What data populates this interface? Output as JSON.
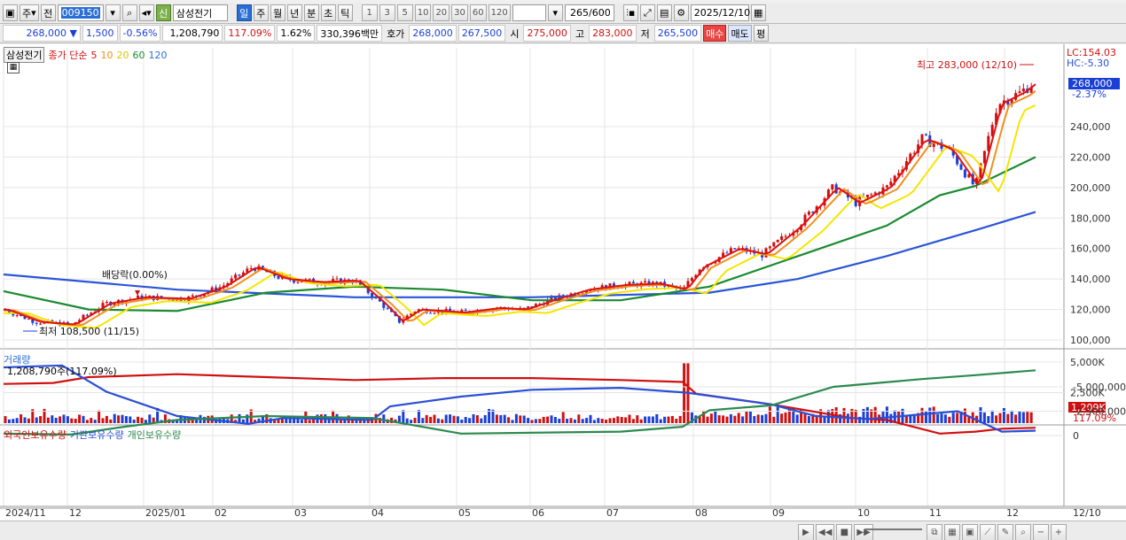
{
  "toolbar": {
    "period_main": "주",
    "prev": "전",
    "stock_code": "009150",
    "market_badge": "신",
    "stock_name": "삼성전기",
    "periods": [
      "일",
      "주",
      "월",
      "년",
      "분",
      "초",
      "틱"
    ],
    "active_period": "일",
    "minute_options": [
      "1",
      "3",
      "5",
      "10",
      "20",
      "30",
      "60",
      "120"
    ],
    "count_display": "265/600",
    "date": "2025/12/10"
  },
  "quote": {
    "price": "268,000",
    "change_arrow": "▼",
    "change": "1,500",
    "change_pct": "-0.56%",
    "volume": "1,208,790",
    "volume_ratio": "117.09%",
    "turnover_ratio": "1.62%",
    "trade_value": "330,396백만",
    "bid_label": "호가",
    "bid1": "268,000",
    "bid2": "267,500",
    "open_label": "시",
    "open": "275,000",
    "high_label": "고",
    "high": "283,000",
    "low_label": "저",
    "low": "265,500",
    "buy_label": "매수",
    "sell_label": "매도",
    "eval_label": "평"
  },
  "price_panel": {
    "stock_label": "삼성전기",
    "ma_label": "종가 단순",
    "ma_periods": [
      {
        "p": "5",
        "color": "#e01010"
      },
      {
        "p": "10",
        "color": "#f0901c"
      },
      {
        "p": "20",
        "color": "#e8d800"
      },
      {
        "p": "60",
        "color": "#1a8a30"
      },
      {
        "p": "120",
        "color": "#2a6fd6"
      }
    ],
    "lc": "LC:154.03",
    "hc": "HC:-5.30",
    "current_price_tag": "268,000",
    "current_pct": "-2.37%",
    "max_annotation": "최고 283,000 (12/10)",
    "min_annotation": "최저 108,500 (11/15)",
    "dividend_annotation": "배당락(0.00%)",
    "y_ticks": [
      "240,000",
      "220,000",
      "200,000",
      "180,000",
      "160,000",
      "140,000",
      "120,000",
      "100,000"
    ]
  },
  "volume_panel": {
    "title": "거래량",
    "value": "1,208,790주(117.09%)",
    "y_ticks": [
      "5,000K",
      "2,500K"
    ],
    "current_tag": "1,209K",
    "current_pct": "117.09%"
  },
  "holdings_panel": {
    "series": [
      {
        "name": "외국인보유수량",
        "color": "#d01010"
      },
      {
        "name": "기관보유수량",
        "color": "#2a4fd6"
      },
      {
        "name": "개인보유수량",
        "color": "#2a8a50"
      }
    ],
    "y_ticks": [
      "0",
      "-2,500,000",
      "-5,000,000"
    ]
  },
  "x_axis": {
    "labels": [
      "2024/11",
      "12",
      "2025/01",
      "02",
      "03",
      "04",
      "05",
      "06",
      "07",
      "08",
      "09",
      "10",
      "11",
      "12",
      "12/10"
    ]
  },
  "colors": {
    "up": "#d01010",
    "down": "#1a3fd6",
    "ma5": "#e01010",
    "ma10": "#f0901c",
    "ma20": "#f5e600",
    "ma60": "#1a8a30",
    "ma120": "#2a55d6"
  }
}
